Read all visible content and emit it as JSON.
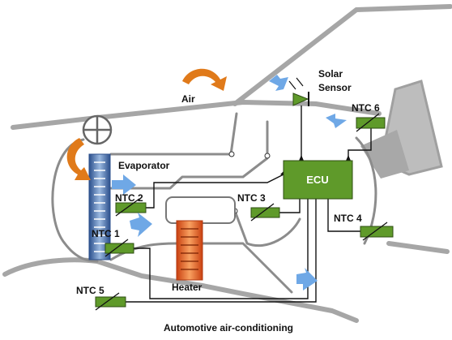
{
  "labels": {
    "air": "Air",
    "solar_sensor": [
      "Solar",
      "Sensor"
    ],
    "evaporator": "Evaporator",
    "ecu": "ECU",
    "heater": "Heater",
    "ntc1": "NTC 1",
    "ntc2": "NTC 2",
    "ntc3": "NTC 3",
    "ntc4": "NTC 4",
    "ntc5": "NTC 5",
    "ntc6": "NTC 6"
  },
  "caption": "Automotive air-conditioning"
}
